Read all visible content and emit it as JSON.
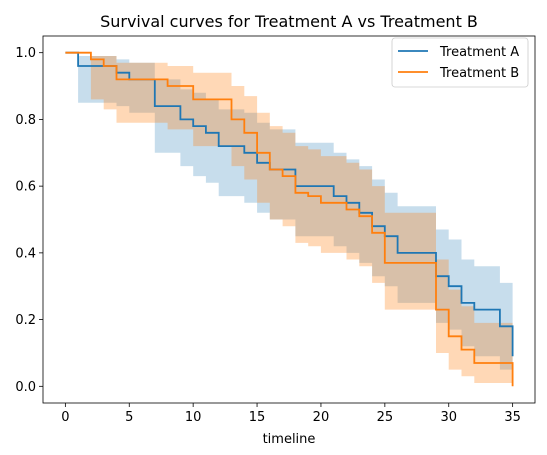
{
  "chart_data": {
    "type": "line",
    "step": true,
    "title": "Survival curves for Treatment A vs Treatment B",
    "xlabel": "timeline",
    "ylabel": "",
    "xlim": [
      -1.75,
      36.75
    ],
    "ylim": [
      -0.05,
      1.05
    ],
    "xticks": [
      0,
      5,
      10,
      15,
      20,
      25,
      30,
      35
    ],
    "yticks": [
      0.0,
      0.2,
      0.4,
      0.6,
      0.8,
      1.0
    ],
    "xtick_labels": [
      "0",
      "5",
      "10",
      "15",
      "20",
      "25",
      "30",
      "35"
    ],
    "ytick_labels": [
      "0.0",
      "0.2",
      "0.4",
      "0.6",
      "0.8",
      "1.0"
    ],
    "grid": false,
    "legend_position": "upper right",
    "series": [
      {
        "name": "Treatment A",
        "color": "#1f77b4",
        "band_opacity": 0.25,
        "t": [
          0,
          1,
          4,
          5,
          7,
          9,
          10,
          11,
          12,
          14,
          15,
          16,
          18,
          21,
          22,
          23,
          24,
          25,
          26,
          29,
          30,
          31,
          32,
          34,
          35
        ],
        "s": [
          1.0,
          0.96,
          0.94,
          0.92,
          0.84,
          0.8,
          0.78,
          0.76,
          0.72,
          0.7,
          0.67,
          0.65,
          0.6,
          0.57,
          0.55,
          0.52,
          0.48,
          0.45,
          0.4,
          0.33,
          0.3,
          0.25,
          0.23,
          0.18,
          0.09
        ],
        "lower": [
          1.0,
          0.85,
          0.84,
          0.82,
          0.7,
          0.66,
          0.63,
          0.61,
          0.57,
          0.55,
          0.52,
          0.5,
          0.45,
          0.42,
          0.4,
          0.37,
          0.33,
          0.3,
          0.25,
          0.19,
          0.17,
          0.12,
          0.09,
          0.05,
          0.02
        ],
        "upper": [
          1.0,
          0.99,
          0.98,
          0.97,
          0.92,
          0.89,
          0.88,
          0.86,
          0.83,
          0.82,
          0.79,
          0.77,
          0.73,
          0.7,
          0.68,
          0.66,
          0.62,
          0.58,
          0.54,
          0.47,
          0.44,
          0.38,
          0.36,
          0.31,
          0.2
        ]
      },
      {
        "name": "Treatment B",
        "color": "#ff7f0e",
        "band_opacity": 0.3,
        "t": [
          0,
          2,
          3,
          4,
          7,
          8,
          10,
          13,
          14,
          15,
          16,
          17,
          18,
          19,
          20,
          21,
          22,
          23,
          24,
          25,
          29,
          30,
          31,
          32,
          34,
          35
        ],
        "s": [
          1.0,
          0.98,
          0.96,
          0.92,
          0.92,
          0.9,
          0.86,
          0.8,
          0.76,
          0.7,
          0.65,
          0.63,
          0.58,
          0.57,
          0.55,
          0.55,
          0.53,
          0.51,
          0.46,
          0.37,
          0.23,
          0.15,
          0.11,
          0.07,
          0.07,
          0.0
        ],
        "lower": [
          1.0,
          0.86,
          0.83,
          0.79,
          0.79,
          0.77,
          0.72,
          0.66,
          0.62,
          0.55,
          0.5,
          0.48,
          0.43,
          0.42,
          0.4,
          0.4,
          0.38,
          0.36,
          0.31,
          0.23,
          0.1,
          0.05,
          0.03,
          0.01,
          0.01,
          0.0
        ],
        "upper": [
          1.0,
          0.99,
          0.99,
          0.97,
          0.97,
          0.96,
          0.94,
          0.9,
          0.87,
          0.82,
          0.78,
          0.76,
          0.72,
          0.71,
          0.69,
          0.69,
          0.67,
          0.65,
          0.6,
          0.52,
          0.38,
          0.29,
          0.24,
          0.19,
          0.19,
          0.2
        ]
      }
    ]
  }
}
